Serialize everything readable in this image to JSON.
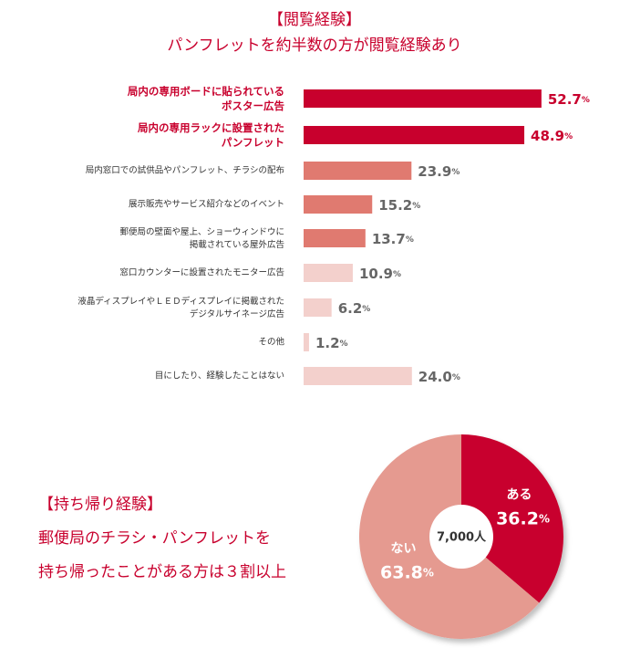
{
  "chart_data": [
    {
      "type": "bar",
      "title": [
        "【閲覧経験】",
        "パンフレットを約半数の方が閲覧経験あり"
      ],
      "categories": [
        "局内の専用ボードに貼られている\nポスター広告",
        "局内の専用ラックに設置された\nパンフレット",
        "局内窓口での試供品やパンフレット、チラシの配布",
        "展示販売やサービス紹介などのイベント",
        "郵便局の壁面や屋上、ショーウィンドウに\n掲載されている屋外広告",
        "窓口カウンターに設置されたモニター広告",
        "液晶ディスプレイやＬＥＤディスプレイに掲載された\nデジタルサイネージ広告",
        "その他",
        "目にしたり、経験したことはない"
      ],
      "values": [
        52.7,
        48.9,
        23.9,
        15.2,
        13.7,
        10.9,
        6.2,
        1.2,
        24.0
      ],
      "value_labels": [
        "52.7%",
        "48.9%",
        "23.9%",
        "15.2%",
        "13.7%",
        "10.9%",
        "6.2%",
        "1.2%",
        "24.0%"
      ],
      "colors": [
        "#c8002d",
        "#c8002d",
        "#e07a70",
        "#e07a70",
        "#e07a70",
        "#f3d0cc",
        "#f3d0cc",
        "#f3d0cc",
        "#f3d0cc"
      ],
      "highlight_color": "#c8002d",
      "xlim": [
        0,
        60
      ]
    },
    {
      "type": "pie",
      "title": [
        "【持ち帰り経験】",
        "郵便局のチラシ・パンフレットを",
        "持ち帰ったことがある方は３割以上"
      ],
      "center_label": "7,000人",
      "categories": [
        "ある",
        "ない"
      ],
      "values": [
        36.2,
        63.8
      ],
      "value_labels": [
        "36.2%",
        "63.8%"
      ],
      "colors": [
        "#c8002d",
        "#e59a90"
      ]
    }
  ]
}
